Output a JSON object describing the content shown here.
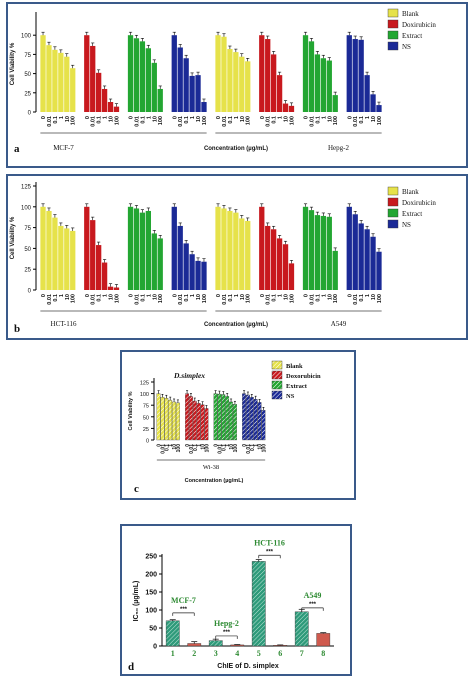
{
  "colors": {
    "blank": "#e6e24a",
    "doxorubicin": "#c8191e",
    "extract": "#23a632",
    "ns": "#1b2a96",
    "frame": "#3a5a8a",
    "teal": "#2e9a7a",
    "green_label": "#2d8a32"
  },
  "chart_data": [
    {
      "id": "a",
      "type": "bar",
      "panel_label": "a",
      "ylabel": "Cell Viability %",
      "xlabel": "Concentration (µg/mL)",
      "ylim": [
        0,
        125
      ],
      "yticks": [
        0,
        25,
        50,
        75,
        100
      ],
      "legend": [
        "Blank",
        "Doxirubicin",
        "Extract",
        "NS"
      ],
      "concentrations": [
        "0",
        "0.01",
        "0.1",
        "1",
        "10",
        "100"
      ],
      "cell_lines": [
        {
          "name": "MCF-7",
          "groups": [
            {
              "series": "Blank",
              "values": [
                100,
                87,
                81,
                77,
                72,
                57
              ]
            },
            {
              "series": "Doxirubicin",
              "values": [
                100,
                86,
                51,
                30,
                13,
                7
              ]
            },
            {
              "series": "Extract",
              "values": [
                100,
                96,
                92,
                83,
                64,
                30
              ]
            },
            {
              "series": "NS",
              "values": [
                100,
                84,
                70,
                47,
                48,
                13
              ]
            }
          ]
        },
        {
          "name": "Hepg-2",
          "groups": [
            {
              "series": "Blank",
              "values": [
                100,
                98,
                82,
                78,
                72,
                66
              ]
            },
            {
              "series": "Doxirubicin",
              "values": [
                100,
                95,
                75,
                48,
                11,
                8
              ]
            },
            {
              "series": "Extract",
              "values": [
                100,
                92,
                75,
                70,
                67,
                22
              ]
            },
            {
              "series": "NS",
              "values": [
                100,
                95,
                94,
                48,
                23,
                9
              ]
            }
          ]
        }
      ]
    },
    {
      "id": "b",
      "type": "bar",
      "panel_label": "b",
      "ylabel": "Cell Viability %",
      "xlabel": "Concentration (µg/mL)",
      "ylim": [
        0,
        125
      ],
      "yticks": [
        0,
        25,
        50,
        75,
        100,
        125
      ],
      "legend": [
        "Blank",
        "Doxirubicin",
        "Extract",
        "NS"
      ],
      "concentrations": [
        "0",
        "0.01",
        "0.1",
        "1",
        "10",
        "100"
      ],
      "cell_lines": [
        {
          "name": "HCT-116",
          "groups": [
            {
              "series": "Blank",
              "values": [
                100,
                95,
                87,
                77,
                74,
                71
              ]
            },
            {
              "series": "Doxirubicin",
              "values": [
                100,
                84,
                54,
                33,
                4,
                3
              ]
            },
            {
              "series": "Extract",
              "values": [
                100,
                98,
                93,
                95,
                68,
                62
              ]
            },
            {
              "series": "NS",
              "values": [
                100,
                77,
                56,
                43,
                35,
                34
              ]
            }
          ]
        },
        {
          "name": "A549",
          "groups": [
            {
              "series": "Blank",
              "values": [
                100,
                98,
                95,
                93,
                86,
                83
              ]
            },
            {
              "series": "Doxirubicin",
              "values": [
                100,
                77,
                73,
                62,
                55,
                32
              ]
            },
            {
              "series": "Extract",
              "values": [
                100,
                96,
                90,
                89,
                88,
                47
              ]
            },
            {
              "series": "NS",
              "values": [
                100,
                91,
                80,
                73,
                64,
                46
              ]
            }
          ]
        }
      ]
    },
    {
      "id": "c",
      "type": "bar",
      "panel_label": "c",
      "title": "D.simplex",
      "ylabel": "Cell Viability %",
      "xlabel": "Concentration (µg/mL)",
      "ylim": [
        0,
        125
      ],
      "yticks": [
        0,
        25,
        50,
        75,
        100,
        125
      ],
      "legend": [
        "Blank",
        "Doxorubicin",
        "Extract",
        "NS"
      ],
      "concentrations": [
        "0",
        "0.01",
        "0.1",
        "1",
        "10",
        "100"
      ],
      "cell_lines": [
        {
          "name": "Wi-38",
          "groups": [
            {
              "series": "Blank",
              "values": [
                100,
                92,
                90,
                86,
                82,
                80
              ]
            },
            {
              "series": "Doxorubicin",
              "values": [
                100,
                94,
                84,
                79,
                76,
                68
              ]
            },
            {
              "series": "Extract",
              "values": [
                100,
                99,
                98,
                94,
                82,
                77
              ]
            },
            {
              "series": "NS",
              "values": [
                100,
                97,
                92,
                88,
                81,
                64
              ]
            }
          ]
        }
      ]
    },
    {
      "id": "d",
      "type": "bar",
      "panel_label": "d",
      "ylabel": "IC₅₀ (µg/mL)",
      "xlabel": "ChIE of D. simplex",
      "ylim": [
        0,
        250
      ],
      "yticks": [
        0,
        50,
        100,
        150,
        200,
        250
      ],
      "categories": [
        "1",
        "2",
        "3",
        "4",
        "5",
        "6",
        "7",
        "8"
      ],
      "values": [
        70,
        7,
        15,
        3,
        235,
        2,
        95,
        35
      ],
      "errors": [
        3,
        5,
        4,
        1,
        5,
        1,
        7,
        2
      ],
      "annotations": [
        {
          "label": "MCF-7",
          "between": [
            0,
            1
          ],
          "y": 92,
          "sig": "***"
        },
        {
          "label": "Hepg-2",
          "between": [
            2,
            3
          ],
          "y": 28,
          "sig": "***"
        },
        {
          "label": "HCT-116",
          "between": [
            4,
            5
          ],
          "y": 252,
          "sig": "***"
        },
        {
          "label": "A549",
          "between": [
            6,
            7
          ],
          "y": 106,
          "sig": "***"
        }
      ]
    }
  ]
}
